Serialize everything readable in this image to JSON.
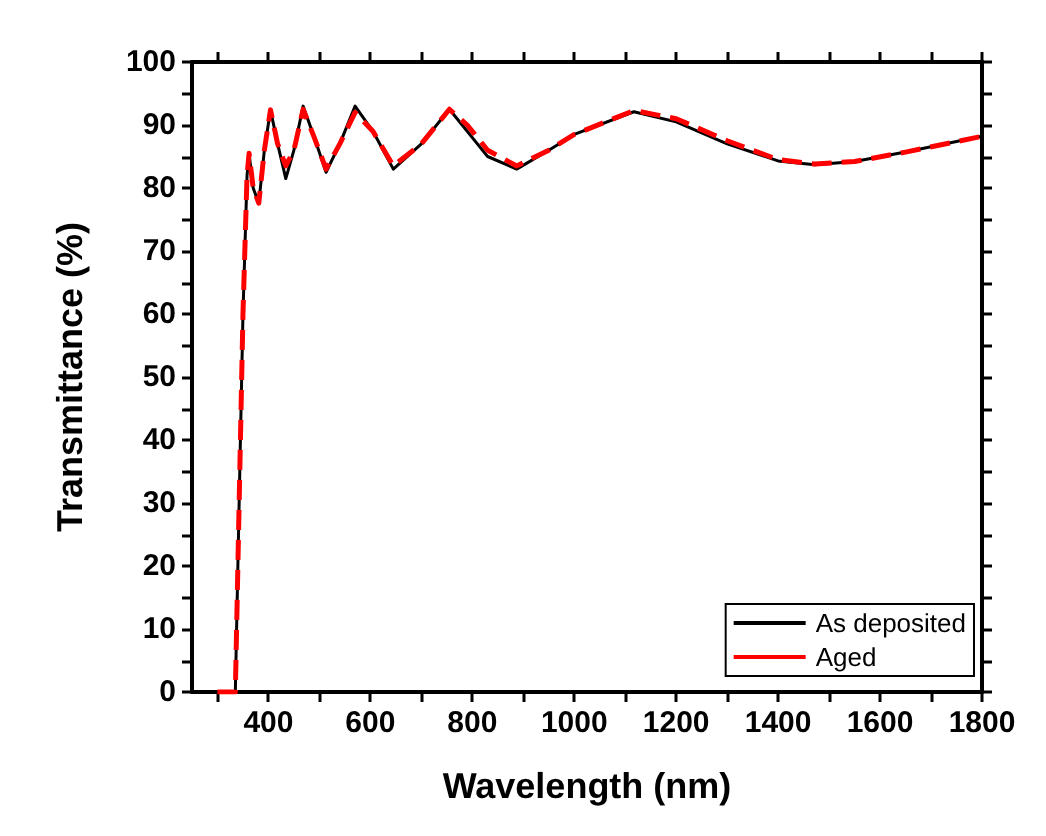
{
  "chart_data": {
    "type": "line",
    "xlabel": "Wavelength (nm)",
    "ylabel": "Transmittance (%)",
    "xlim": [
      250,
      1800
    ],
    "xticks": [
      400,
      600,
      800,
      1000,
      1200,
      1400,
      1600,
      1800
    ],
    "ylim": [
      0,
      100
    ],
    "yticks": [
      0,
      10,
      20,
      30,
      40,
      50,
      60,
      70,
      80,
      90,
      100
    ],
    "grid": false,
    "legend": "bottom right",
    "marker": "none",
    "series": [
      {
        "name": "As deposited",
        "color": "#000000",
        "line_style": "solid",
        "x": [
          300,
          335,
          340,
          350,
          358,
          362,
          370,
          381,
          392,
          404,
          418,
          434,
          450,
          468,
          490,
          513,
          540,
          570,
          605,
          645,
          700,
          755,
          790,
          800,
          830,
          887,
          950,
          1000,
          1117,
          1200,
          1300,
          1400,
          1472,
          1550,
          1650,
          1800
        ],
        "values": [
          0,
          0,
          20,
          60,
          82,
          85.5,
          80,
          77.6,
          86,
          92.4,
          87,
          81.5,
          86,
          93,
          88,
          82.5,
          87,
          93,
          89,
          83,
          87,
          92.5,
          89,
          88,
          85,
          83,
          86,
          88.5,
          92.1,
          90.5,
          87,
          84.3,
          83.7,
          84.2,
          85.7,
          88.2
        ]
      },
      {
        "name": "Aged",
        "color": "#ff0000",
        "line_style": "dashed",
        "x": [
          300,
          335,
          340,
          350,
          358,
          362,
          370,
          381,
          392,
          404,
          418,
          434,
          450,
          468,
          490,
          513,
          540,
          570,
          605,
          645,
          700,
          755,
          790,
          800,
          830,
          887,
          950,
          1000,
          1117,
          1200,
          1300,
          1400,
          1472,
          1550,
          1650,
          1800
        ],
        "values": [
          0,
          0,
          20,
          60,
          82,
          85.5,
          80,
          77.6,
          86,
          92.4,
          87,
          83.5,
          86,
          92.5,
          88,
          83,
          87,
          92,
          89,
          83.5,
          87,
          92.5,
          90,
          89,
          86,
          83.5,
          86,
          88.5,
          92.3,
          91,
          87.5,
          84.5,
          83.8,
          84.2,
          85.7,
          88.2
        ]
      }
    ]
  }
}
